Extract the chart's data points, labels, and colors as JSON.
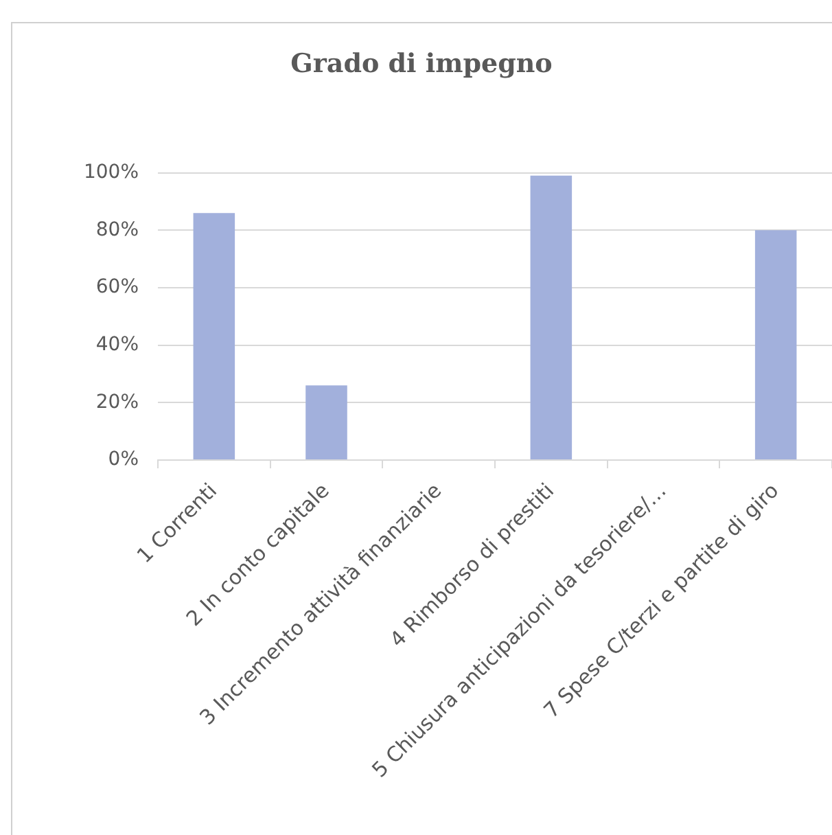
{
  "chart_data": {
    "type": "bar",
    "title": "Grado di impegno",
    "categories": [
      "1 Correnti",
      "2 In conto capitale",
      "3 Incremento attività finanziarie",
      "4 Rimborso di prestiti",
      "5 Chiusura anticipazioni da tesoriere/…",
      "7 Spese C/terzi e partite di giro"
    ],
    "values": [
      86,
      26,
      0,
      99,
      0,
      80
    ],
    "color": "#a2b0dc",
    "ylim": [
      0,
      100
    ],
    "yticks": [
      {
        "value": 0,
        "label": "0%"
      },
      {
        "value": 20,
        "label": "20%"
      },
      {
        "value": 40,
        "label": "40%"
      },
      {
        "value": 60,
        "label": "60%"
      },
      {
        "value": 80,
        "label": "80%"
      },
      {
        "value": 100,
        "label": "100%"
      }
    ],
    "grid": "y"
  }
}
